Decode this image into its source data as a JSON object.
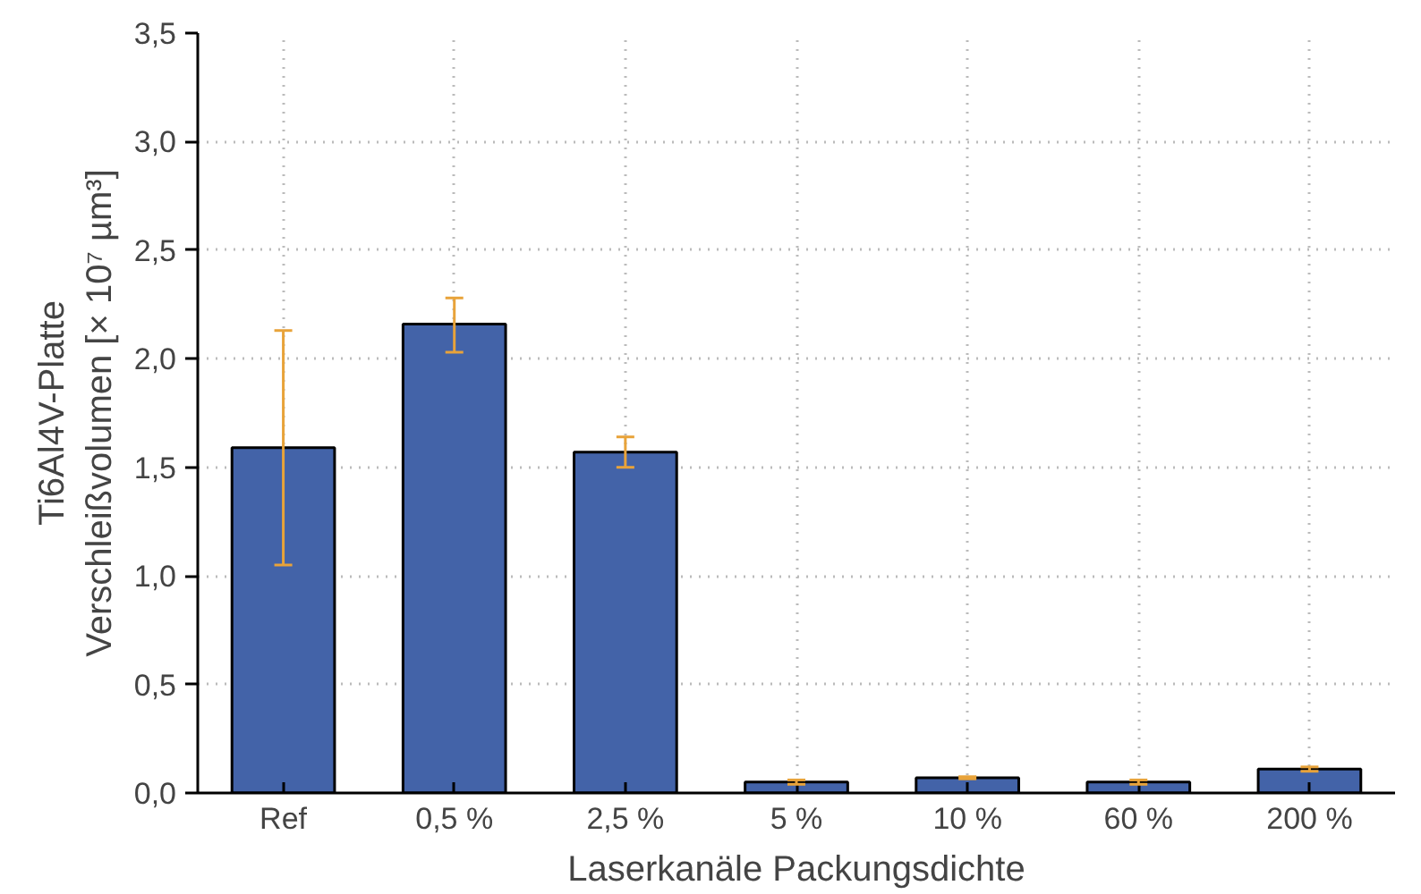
{
  "chart_data": {
    "type": "bar",
    "xlabel": "Laserkanäle Packungsdichte",
    "ylabel": "Ti6Al4V-Platte\nVerschleißvolumen [× 10⁷ µm³]",
    "categories": [
      "Ref",
      "0,5 %",
      "2,5 %",
      "5 %",
      "10 %",
      "60 %",
      "200 %"
    ],
    "values": [
      1.59,
      2.16,
      1.57,
      0.05,
      0.07,
      0.05,
      0.11
    ],
    "errors": [
      [
        1.05,
        2.13
      ],
      [
        2.03,
        2.28
      ],
      [
        1.5,
        1.64
      ],
      [
        0.04,
        0.06
      ],
      [
        0.065,
        0.075
      ],
      [
        0.04,
        0.06
      ],
      [
        0.1,
        0.12
      ]
    ],
    "color": "#4363a8",
    "ylim": [
      0,
      3.5
    ],
    "yticks": [
      {
        "value": 0,
        "label": "0,0"
      },
      {
        "value": 0.5,
        "label": "0,5"
      },
      {
        "value": 1,
        "label": "1,0"
      },
      {
        "value": 1.5,
        "label": "1,5"
      },
      {
        "value": 2,
        "label": "2,0"
      },
      {
        "value": 2.5,
        "label": "2,5"
      },
      {
        "value": 3,
        "label": "3,0"
      },
      {
        "value": 3.5,
        "label": "3,5"
      }
    ],
    "grid": true
  }
}
